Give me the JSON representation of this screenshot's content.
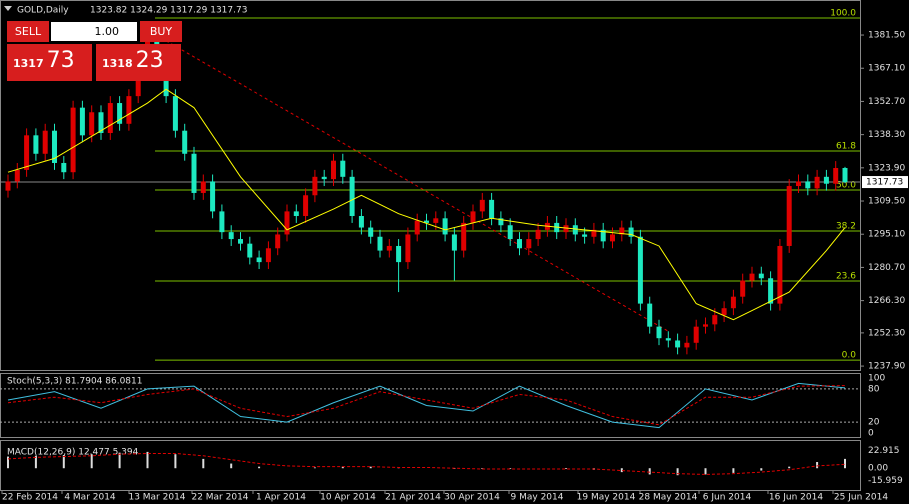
{
  "header": {
    "symbol": "GOLD,Daily",
    "ohlc": "1323.82 1324.29 1317.29 1317.73"
  },
  "trade_panel": {
    "sell": "SELL",
    "buy": "BUY",
    "lots": "1.00",
    "bid": {
      "main": "1317",
      "pips": "73"
    },
    "ask": {
      "main": "1318",
      "pips": "23"
    }
  },
  "chart_data": {
    "type": "candlestick",
    "up_color": "#e00000",
    "down_color": "#1de9c0",
    "ylim": [
      1236.2,
      1396.7
    ],
    "yticks": [
      {
        "value": 1381.5,
        "label": "1381.50"
      },
      {
        "value": 1367.1,
        "label": "1367.10"
      },
      {
        "value": 1352.7,
        "label": "1352.70"
      },
      {
        "value": 1338.3,
        "label": "1338.30"
      },
      {
        "value": 1323.9,
        "label": "1323.90"
      },
      {
        "value": 1309.5,
        "label": "1309.50"
      },
      {
        "value": 1295.1,
        "label": "1295.10"
      },
      {
        "value": 1280.7,
        "label": "1280.70"
      },
      {
        "value": 1266.3,
        "label": "1266.30"
      },
      {
        "value": 1252.3,
        "label": "1252.30"
      },
      {
        "value": 1237.9,
        "label": "1237.90"
      }
    ],
    "current_price": 1317.73,
    "candles": [
      [
        1314,
        1321,
        1311,
        1318
      ],
      [
        1318,
        1326,
        1315,
        1323
      ],
      [
        1323,
        1341,
        1320,
        1338
      ],
      [
        1338,
        1341,
        1327,
        1330
      ],
      [
        1330,
        1343,
        1327,
        1340
      ],
      [
        1340,
        1343,
        1323,
        1326
      ],
      [
        1326,
        1329,
        1319,
        1322
      ],
      [
        1322,
        1353,
        1319,
        1350
      ],
      [
        1350,
        1353,
        1335,
        1338
      ],
      [
        1338,
        1351,
        1335,
        1348
      ],
      [
        1348,
        1351,
        1336,
        1339
      ],
      [
        1339,
        1355,
        1336,
        1352
      ],
      [
        1352,
        1355,
        1340,
        1343
      ],
      [
        1343,
        1358,
        1340,
        1355
      ],
      [
        1355,
        1373,
        1352,
        1370
      ],
      [
        1370,
        1383,
        1367,
        1380
      ],
      [
        1380,
        1383,
        1365,
        1368
      ],
      [
        1368,
        1371,
        1352,
        1355
      ],
      [
        1355,
        1358,
        1337,
        1340
      ],
      [
        1340,
        1343,
        1327,
        1330
      ],
      [
        1330,
        1333,
        1310,
        1313
      ],
      [
        1313,
        1321,
        1310,
        1318
      ],
      [
        1318,
        1321,
        1302,
        1305
      ],
      [
        1305,
        1308,
        1293,
        1296
      ],
      [
        1296,
        1299,
        1290,
        1293
      ],
      [
        1293,
        1296,
        1288,
        1291
      ],
      [
        1291,
        1294,
        1282,
        1285
      ],
      [
        1285,
        1288,
        1280,
        1283
      ],
      [
        1283,
        1292,
        1280,
        1289
      ],
      [
        1289,
        1298,
        1286,
        1295
      ],
      [
        1295,
        1308,
        1292,
        1305
      ],
      [
        1305,
        1308,
        1300,
        1303
      ],
      [
        1303,
        1315,
        1300,
        1312
      ],
      [
        1312,
        1323,
        1309,
        1320
      ],
      [
        1320,
        1323,
        1316,
        1319
      ],
      [
        1319,
        1330,
        1316,
        1327
      ],
      [
        1327,
        1330,
        1317,
        1320
      ],
      [
        1320,
        1323,
        1300,
        1303
      ],
      [
        1303,
        1306,
        1295,
        1298
      ],
      [
        1298,
        1301,
        1291,
        1294
      ],
      [
        1294,
        1297,
        1285,
        1288
      ],
      [
        1288,
        1293,
        1285,
        1290
      ],
      [
        1290,
        1293,
        1270,
        1283
      ],
      [
        1283,
        1298,
        1280,
        1295
      ],
      [
        1295,
        1304,
        1292,
        1301
      ],
      [
        1301,
        1304,
        1297,
        1300
      ],
      [
        1300,
        1305,
        1297,
        1302
      ],
      [
        1302,
        1305,
        1292,
        1295
      ],
      [
        1295,
        1298,
        1275,
        1288
      ],
      [
        1288,
        1303,
        1285,
        1300
      ],
      [
        1300,
        1308,
        1297,
        1305
      ],
      [
        1305,
        1313,
        1302,
        1310
      ],
      [
        1310,
        1313,
        1299,
        1302
      ],
      [
        1302,
        1305,
        1296,
        1299
      ],
      [
        1299,
        1302,
        1290,
        1293
      ],
      [
        1293,
        1296,
        1286,
        1289
      ],
      [
        1289,
        1296,
        1286,
        1293
      ],
      [
        1293,
        1300,
        1290,
        1297
      ],
      [
        1297,
        1303,
        1294,
        1300
      ],
      [
        1300,
        1303,
        1293,
        1296
      ],
      [
        1296,
        1302,
        1293,
        1299
      ],
      [
        1299,
        1302,
        1292,
        1295
      ],
      [
        1295,
        1298,
        1291,
        1294
      ],
      [
        1294,
        1300,
        1291,
        1297
      ],
      [
        1297,
        1300,
        1289,
        1292
      ],
      [
        1292,
        1298,
        1289,
        1295
      ],
      [
        1295,
        1301,
        1292,
        1298
      ],
      [
        1298,
        1301,
        1291,
        1294
      ],
      [
        1294,
        1297,
        1262,
        1265
      ],
      [
        1265,
        1268,
        1252,
        1255
      ],
      [
        1255,
        1258,
        1247,
        1250
      ],
      [
        1250,
        1253,
        1246,
        1249
      ],
      [
        1249,
        1252,
        1243,
        1246
      ],
      [
        1246,
        1251,
        1243,
        1248
      ],
      [
        1248,
        1258,
        1245,
        1255
      ],
      [
        1255,
        1259,
        1252,
        1256
      ],
      [
        1256,
        1263,
        1253,
        1260
      ],
      [
        1260,
        1266,
        1257,
        1263
      ],
      [
        1263,
        1271,
        1260,
        1268
      ],
      [
        1268,
        1278,
        1265,
        1275
      ],
      [
        1275,
        1281,
        1272,
        1278
      ],
      [
        1278,
        1281,
        1273,
        1276
      ],
      [
        1276,
        1279,
        1262,
        1265
      ],
      [
        1265,
        1293,
        1262,
        1290
      ],
      [
        1290,
        1319,
        1287,
        1316
      ],
      [
        1316,
        1321,
        1313,
        1318
      ],
      [
        1318,
        1321,
        1312,
        1315
      ],
      [
        1315,
        1323,
        1312,
        1320
      ],
      [
        1320,
        1323,
        1314,
        1317
      ],
      [
        1317,
        1326.82,
        1314,
        1323.82
      ],
      [
        1323.82,
        1324.29,
        1317.29,
        1317.73
      ]
    ],
    "ma": {
      "color": "#ffff00",
      "x": [
        0,
        5,
        10,
        15,
        17,
        20,
        25,
        30,
        35,
        38,
        42,
        47,
        52,
        57,
        62,
        67,
        70,
        74,
        78,
        80,
        84,
        88,
        90
      ],
      "values": [
        1322,
        1328,
        1340,
        1352,
        1358,
        1350,
        1320,
        1297,
        1306,
        1312,
        1304,
        1297,
        1302,
        1299,
        1297,
        1295,
        1290,
        1265,
        1258,
        1262,
        1270,
        1288,
        1298
      ]
    },
    "trendline": {
      "color": "#e00000",
      "x": [
        17,
        71
      ],
      "values": [
        1379,
        1253
      ]
    },
    "fib_levels": [
      {
        "level": "100.0",
        "price": 1388.9
      },
      {
        "level": "61.8",
        "price": 1331.2
      },
      {
        "level": "50.0",
        "price": 1314.3
      },
      {
        "level": "38.2",
        "price": 1296.5
      },
      {
        "level": "23.6",
        "price": 1274.8
      },
      {
        "level": "0.0",
        "price": 1240.5
      }
    ],
    "x_labels": [
      "22 Feb 2014",
      "4 Mar 2014",
      "13 Mar 2014",
      "22 Mar 2014",
      "1 Apr 2014",
      "10 Apr 2014",
      "21 Apr 2014",
      "30 Apr 2014",
      "9 May 2014",
      "19 May 2014",
      "28 May 2014",
      "6 Jun 2014",
      "16 Jun 2014",
      "25 Jun 2014"
    ],
    "stoch": {
      "title": "Stoch(5,3,3) 81.7904 86.0811",
      "ylim": [
        -7,
        107
      ],
      "yticks": [
        0,
        20,
        80,
        100
      ],
      "levels": [
        20,
        80
      ],
      "x": [
        0,
        5,
        10,
        15,
        20,
        25,
        30,
        35,
        40,
        45,
        50,
        55,
        60,
        65,
        70,
        75,
        80,
        85,
        90
      ],
      "main": [
        60,
        75,
        45,
        80,
        85,
        30,
        20,
        55,
        85,
        50,
        40,
        85,
        50,
        20,
        10,
        80,
        60,
        90,
        82
      ],
      "signal": [
        55,
        65,
        55,
        70,
        80,
        45,
        30,
        45,
        75,
        60,
        45,
        70,
        60,
        30,
        15,
        65,
        65,
        85,
        86
      ]
    },
    "macd": {
      "title": "MACD(12,26,9) 12.477 5.394",
      "ylim": [
        -28,
        35
      ],
      "yticks": [
        22.915,
        {
          "value": 0,
          "label": "0.00"
        },
        -15.959
      ],
      "x": [
        0,
        3,
        6,
        9,
        12,
        15,
        18,
        21,
        24,
        27,
        30,
        33,
        36,
        39,
        42,
        45,
        48,
        51,
        54,
        57,
        60,
        63,
        66,
        69,
        72,
        75,
        78,
        81,
        84,
        87,
        90
      ],
      "histogram": [
        15,
        16,
        17,
        18,
        20,
        21,
        18,
        12,
        6,
        2,
        0,
        1,
        2,
        2,
        1,
        0,
        -1,
        -1,
        -1,
        0,
        -1,
        -2,
        -5,
        -8,
        -9,
        -8,
        -6,
        -3,
        2,
        8,
        12
      ],
      "signal": [
        12,
        14,
        15,
        16,
        18,
        19,
        19,
        16,
        11,
        6,
        3,
        2,
        2,
        2,
        1,
        1,
        0,
        -1,
        -1,
        -1,
        -1,
        -1,
        -3,
        -5,
        -7,
        -8,
        -7,
        -5,
        -2,
        3,
        5
      ]
    }
  }
}
